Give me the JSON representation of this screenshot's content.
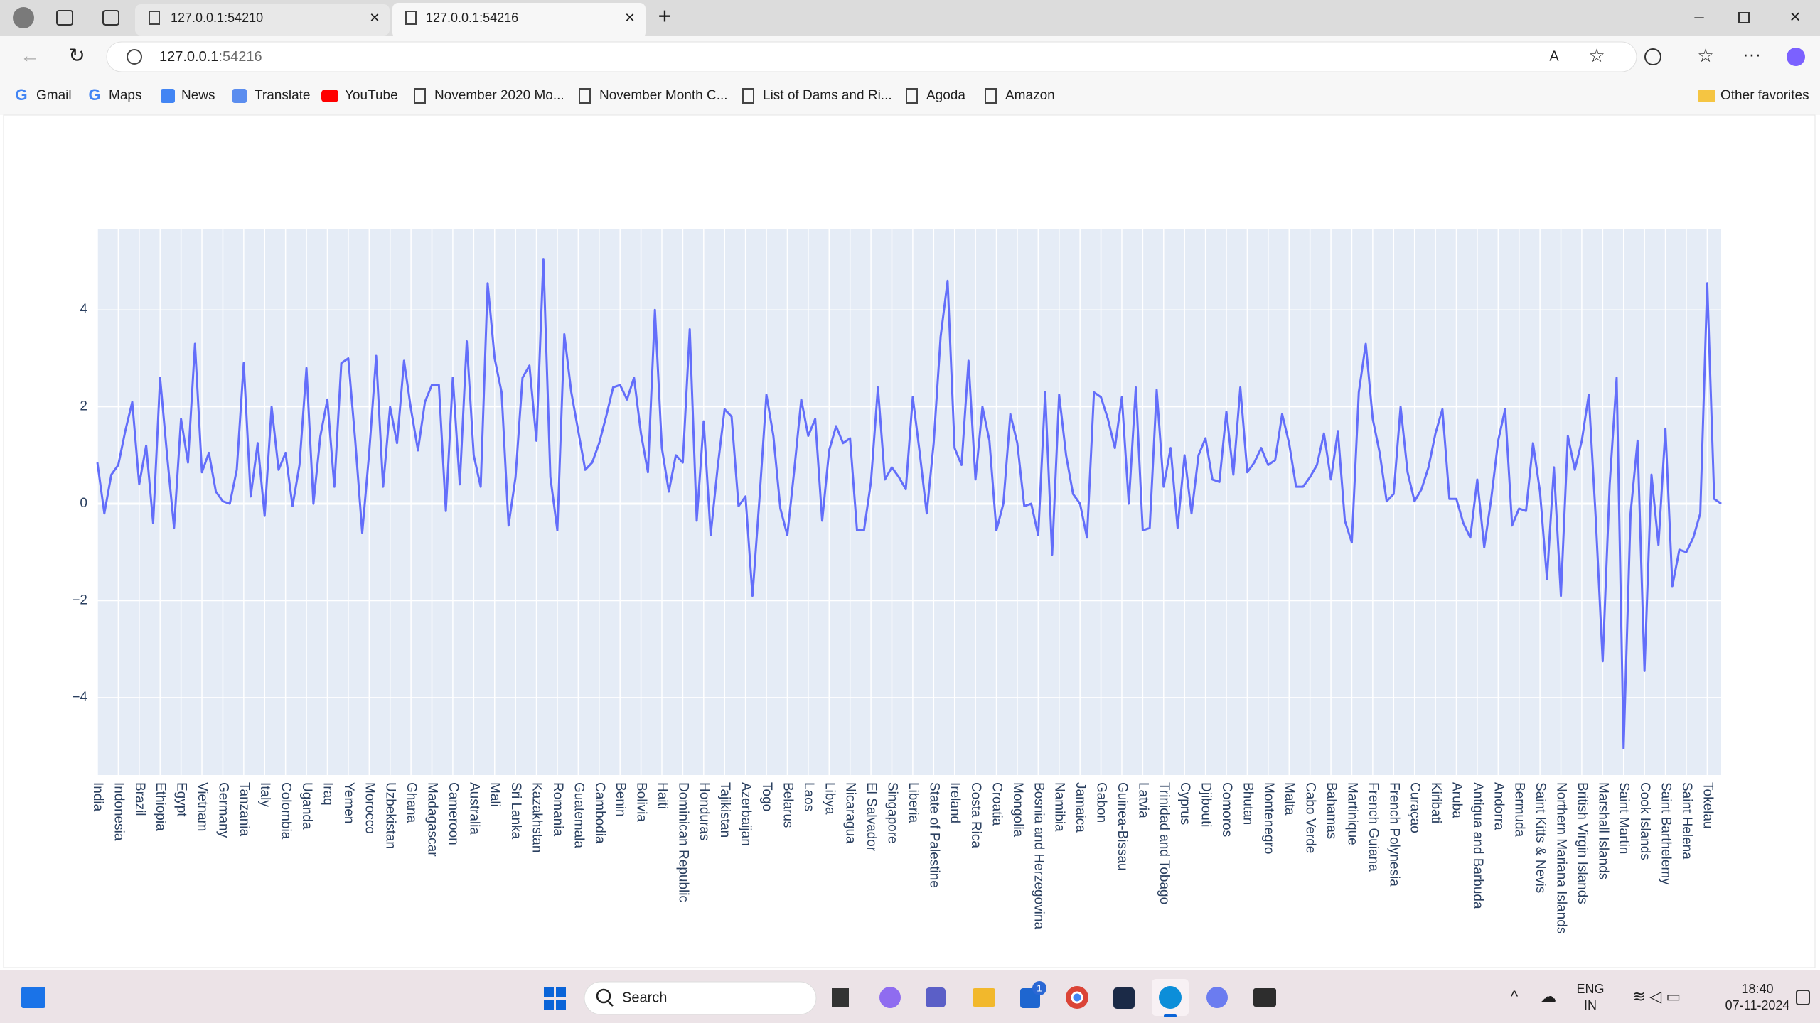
{
  "browser": {
    "tabs": [
      "127.0.0.1:54210",
      "127.0.0.1:54216"
    ],
    "url": {
      "host": "127.0.0.1",
      "port": ":54216"
    },
    "bookmarks": [
      "Gmail",
      "Maps",
      "News",
      "Translate",
      "YouTube",
      "November 2020 Mo...",
      "November Month C...",
      "List of Dams and Ri...",
      "Agoda",
      "Amazon"
    ],
    "other_favorites": "Other favorites"
  },
  "taskbar": {
    "search": "Search",
    "badge": "1",
    "language": "ENG",
    "region": "IN",
    "time": "18:40",
    "date": "07-11-2024"
  },
  "chart_data": {
    "type": "line",
    "color": "#636efa",
    "grid": true,
    "ylim": [
      -5.6,
      5.66
    ],
    "yticks": [
      {
        "value": -4,
        "label": "−4"
      },
      {
        "value": -2,
        "label": "−2"
      },
      0,
      2,
      4
    ],
    "categories": [
      "India",
      null,
      null,
      "Indonesia",
      null,
      null,
      "Brazil",
      null,
      null,
      "Ethiopia",
      null,
      null,
      "Egypt",
      null,
      null,
      "Vietnam",
      null,
      null,
      "Germany",
      null,
      null,
      "Tanzania",
      null,
      null,
      "Italy",
      null,
      null,
      "Colombia",
      null,
      null,
      "Uganda",
      null,
      null,
      "Iraq",
      null,
      null,
      "Yemen",
      null,
      null,
      "Morocco",
      null,
      null,
      "Uzbekistan",
      null,
      null,
      "Ghana",
      null,
      null,
      "Madagascar",
      null,
      null,
      "Cameroon",
      null,
      null,
      "Australia",
      null,
      null,
      "Mali",
      null,
      null,
      "Sri Lanka",
      null,
      null,
      "Kazakhstan",
      null,
      null,
      "Romania",
      null,
      null,
      "Guatemala",
      null,
      null,
      "Cambodia",
      null,
      null,
      "Benin",
      null,
      null,
      "Bolivia",
      null,
      null,
      "Haiti",
      null,
      null,
      "Dominican Republic",
      null,
      null,
      "Honduras",
      null,
      null,
      "Tajikistan",
      null,
      null,
      "Azerbaijan",
      null,
      null,
      "Togo",
      null,
      null,
      "Belarus",
      null,
      null,
      "Laos",
      null,
      null,
      "Libya",
      null,
      null,
      "Nicaragua",
      null,
      null,
      "El Salvador",
      null,
      null,
      "Singapore",
      null,
      null,
      "Liberia",
      null,
      null,
      "State of Palestine",
      null,
      null,
      "Ireland",
      null,
      null,
      "Costa Rica",
      null,
      null,
      "Croatia",
      null,
      null,
      "Mongolia",
      null,
      null,
      "Bosnia and Herzegovina",
      null,
      null,
      "Namibia",
      null,
      null,
      "Jamaica",
      null,
      null,
      "Gabon",
      null,
      null,
      "Guinea-Bissau",
      null,
      null,
      "Latvia",
      null,
      null,
      "Trinidad and Tobago",
      null,
      null,
      "Cyprus",
      null,
      null,
      "Djibouti",
      null,
      null,
      "Comoros",
      null,
      null,
      "Bhutan",
      null,
      null,
      "Montenegro",
      null,
      null,
      "Malta",
      null,
      null,
      "Cabo Verde",
      null,
      null,
      "Bahamas",
      null,
      null,
      "Martinique",
      null,
      null,
      "French Guiana",
      null,
      null,
      "French Polynesia",
      null,
      null,
      "Curaçao",
      null,
      null,
      "Kiribati",
      null,
      null,
      "Aruba",
      null,
      null,
      "Antigua and Barbuda",
      null,
      null,
      "Andorra",
      null,
      null,
      "Bermuda",
      null,
      null,
      "Saint Kitts & Nevis",
      null,
      null,
      "Northern Mariana Islands",
      null,
      null,
      "British Virgin Islands",
      null,
      null,
      "Marshall Islands",
      null,
      null,
      "Saint Martin",
      null,
      null,
      "Cook Islands",
      null,
      null,
      "Saint Barthelemy",
      null,
      null,
      "Saint Helena",
      null,
      null,
      "Tokelau",
      null,
      null
    ],
    "values": [
      0.85,
      -0.2,
      0.6,
      0.8,
      1.5,
      2.1,
      0.4,
      1.2,
      -0.4,
      2.6,
      1.0,
      -0.5,
      1.75,
      0.85,
      3.3,
      0.65,
      1.05,
      0.25,
      0.05,
      0.0,
      0.7,
      2.9,
      0.15,
      1.25,
      -0.25,
      2.0,
      0.7,
      1.05,
      -0.05,
      0.8,
      2.8,
      0.0,
      1.4,
      2.15,
      0.35,
      2.9,
      3.0,
      1.3,
      -0.6,
      1.05,
      3.05,
      0.35,
      2.0,
      1.25,
      2.95,
      1.95,
      1.1,
      2.1,
      2.45,
      2.45,
      -0.15,
      2.6,
      0.4,
      3.35,
      1.0,
      0.35,
      4.55,
      3.0,
      2.3,
      -0.45,
      0.55,
      2.6,
      2.85,
      1.3,
      5.05,
      0.55,
      -0.55,
      3.5,
      2.3,
      1.5,
      0.7,
      0.85,
      1.25,
      1.8,
      2.4,
      2.45,
      2.15,
      2.6,
      1.45,
      0.65,
      4.0,
      1.15,
      0.25,
      1.0,
      0.85,
      3.6,
      -0.35,
      1.7,
      -0.65,
      0.75,
      1.95,
      1.8,
      -0.05,
      0.15,
      -1.9,
      0.1,
      2.25,
      1.4,
      -0.1,
      -0.65,
      0.7,
      2.15,
      1.4,
      1.75,
      -0.35,
      1.1,
      1.6,
      1.25,
      1.35,
      -0.55,
      -0.55,
      0.45,
      2.4,
      0.5,
      0.75,
      0.55,
      0.3,
      2.2,
      1.05,
      -0.2,
      1.25,
      3.45,
      4.6,
      1.15,
      0.8,
      2.95,
      0.5,
      2.0,
      1.3,
      -0.55,
      0.0,
      1.85,
      1.25,
      -0.05,
      0.0,
      -0.65,
      2.3,
      -1.05,
      2.25,
      1.0,
      0.2,
      0.0,
      -0.7,
      2.3,
      2.2,
      1.75,
      1.15,
      2.2,
      0.0,
      2.4,
      -0.55,
      -0.5,
      2.35,
      0.35,
      1.15,
      -0.5,
      1.0,
      -0.2,
      1.0,
      1.35,
      0.5,
      0.45,
      1.9,
      0.6,
      2.4,
      0.65,
      0.85,
      1.15,
      0.8,
      0.9,
      1.85,
      1.25,
      0.35,
      0.35,
      0.55,
      0.8,
      1.45,
      0.5,
      1.5,
      -0.35,
      -0.8,
      2.3,
      3.3,
      1.75,
      1.05,
      0.05,
      0.2,
      2.0,
      0.65,
      0.05,
      0.3,
      0.75,
      1.45,
      1.95,
      0.1,
      0.1,
      -0.4,
      -0.7,
      0.5,
      -0.9,
      0.1,
      1.3,
      1.95,
      -0.45,
      -0.1,
      -0.15,
      1.25,
      0.25,
      -1.55,
      0.75,
      -1.9,
      1.4,
      0.7,
      1.3,
      2.25,
      -0.3,
      -3.25,
      0.4,
      2.6,
      -5.05,
      -0.2,
      1.3,
      -3.45,
      0.6,
      -0.85,
      1.55,
      -1.7,
      -0.95,
      -1.0,
      -0.7,
      -0.2,
      4.55,
      0.1,
      0.0
    ]
  }
}
